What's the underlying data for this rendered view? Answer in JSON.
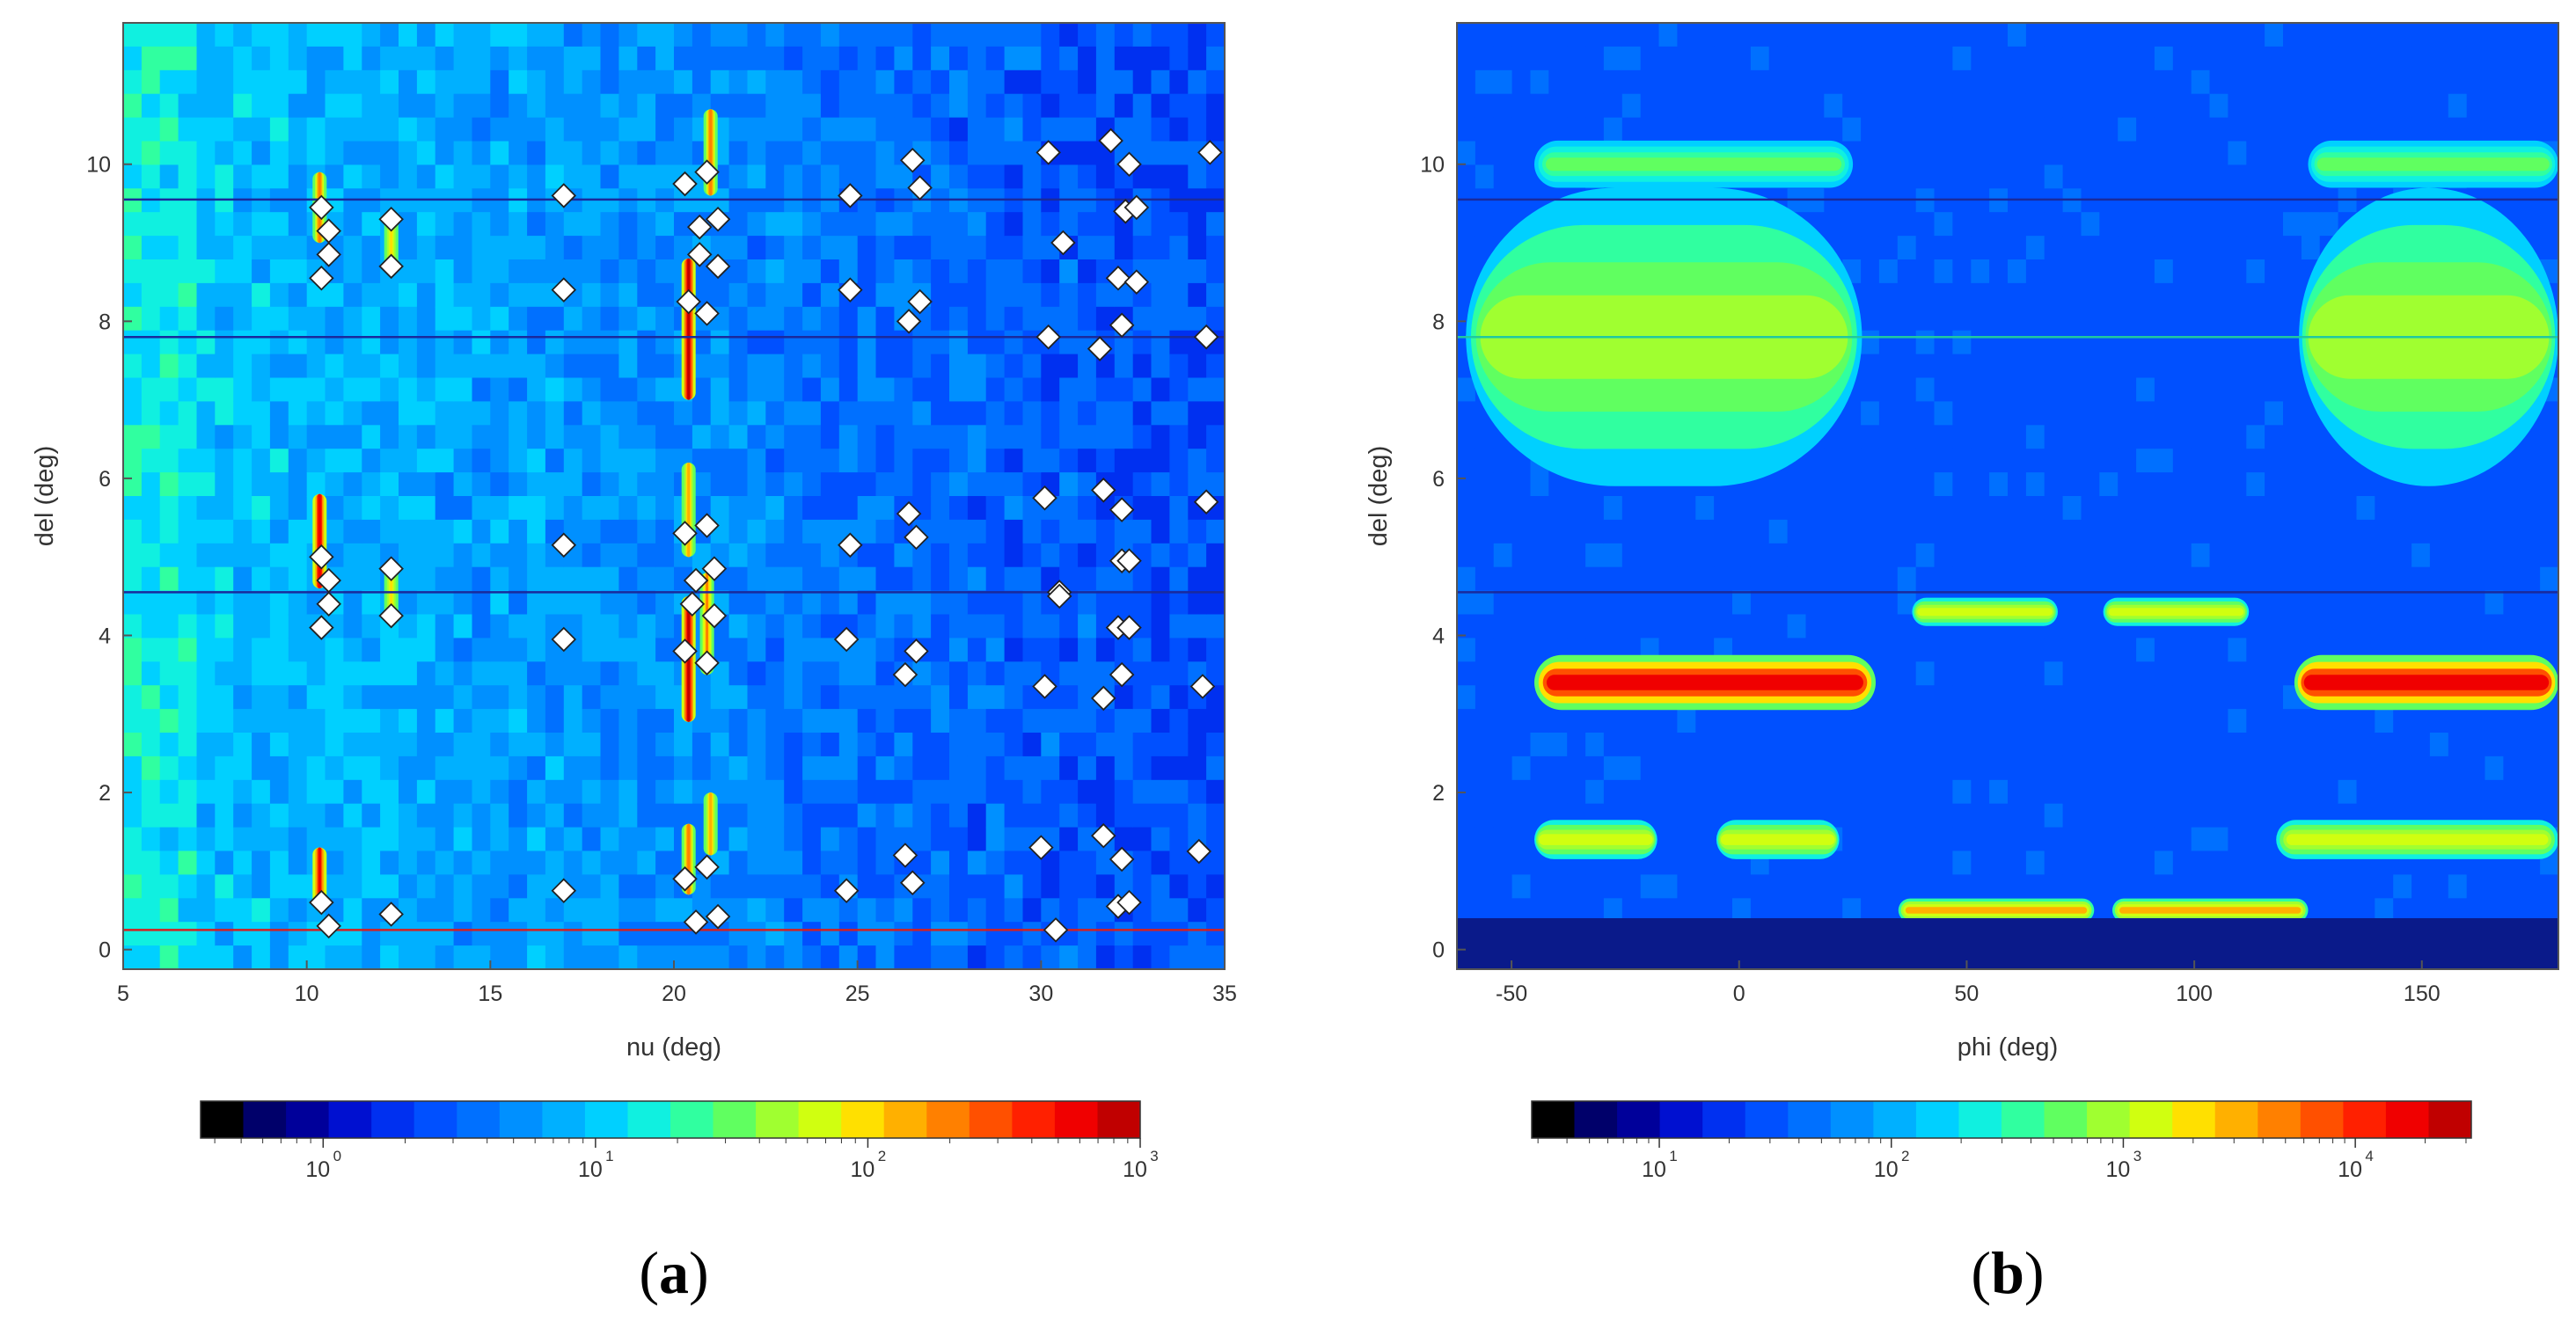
{
  "figure": {
    "panels": [
      {
        "label_open": "(",
        "label_letter": "a",
        "label_close": ")"
      },
      {
        "label_open": "(",
        "label_letter": "b",
        "label_close": ")"
      }
    ]
  },
  "colormap": [
    "#000000",
    "#00006a",
    "#00009a",
    "#0010d0",
    "#0030f0",
    "#0050ff",
    "#0070ff",
    "#0090ff",
    "#00b0ff",
    "#00d0ff",
    "#10f0e0",
    "#30ffa0",
    "#60ff60",
    "#a0ff30",
    "#d0ff10",
    "#ffe000",
    "#ffb000",
    "#ff8000",
    "#ff5000",
    "#ff2000",
    "#f00000",
    "#c00000"
  ],
  "chart_data": [
    {
      "type": "heatmap",
      "title": "",
      "xlabel": "nu (deg)",
      "ylabel": "del (deg)",
      "xlim": [
        5,
        35
      ],
      "ylim": [
        -0.25,
        11.8
      ],
      "xticks": [
        5,
        10,
        15,
        20,
        25,
        30,
        35
      ],
      "yticks": [
        0,
        2,
        4,
        6,
        8,
        10
      ],
      "horizontal_lines": [
        {
          "y": 9.55,
          "color": "#1a2a9c"
        },
        {
          "y": 7.8,
          "color": "#1a2a9c"
        },
        {
          "y": 4.55,
          "color": "#1a2a9c"
        },
        {
          "y": 0.25,
          "color": "#d42020"
        }
      ],
      "intensity_streaks": [
        {
          "x": 10.35,
          "y_from": 9.0,
          "y_to": 9.9,
          "level": 0.7
        },
        {
          "x": 10.35,
          "y_from": 4.6,
          "y_to": 5.8,
          "level": 0.95
        },
        {
          "x": 10.35,
          "y_from": 0.5,
          "y_to": 1.3,
          "level": 0.9
        },
        {
          "x": 12.3,
          "y_from": 8.6,
          "y_to": 9.4,
          "level": 0.55
        },
        {
          "x": 12.3,
          "y_from": 4.2,
          "y_to": 4.9,
          "level": 0.55
        },
        {
          "x": 20.4,
          "y_from": 7.0,
          "y_to": 8.8,
          "level": 1.0
        },
        {
          "x": 20.4,
          "y_from": 2.9,
          "y_to": 4.5,
          "level": 1.0
        },
        {
          "x": 20.4,
          "y_from": 5.0,
          "y_to": 6.2,
          "level": 0.6
        },
        {
          "x": 20.4,
          "y_from": 0.7,
          "y_to": 1.6,
          "level": 0.7
        },
        {
          "x": 21.0,
          "y_from": 9.6,
          "y_to": 10.7,
          "level": 0.7
        },
        {
          "x": 20.9,
          "y_from": 3.5,
          "y_to": 4.8,
          "level": 0.65
        },
        {
          "x": 21.0,
          "y_from": 1.2,
          "y_to": 2.0,
          "level": 0.6
        }
      ],
      "markers": [
        [
          10.4,
          9.45
        ],
        [
          10.6,
          9.15
        ],
        [
          10.6,
          8.85
        ],
        [
          10.4,
          8.55
        ],
        [
          10.4,
          5.0
        ],
        [
          10.6,
          4.7
        ],
        [
          10.6,
          4.4
        ],
        [
          10.4,
          4.1
        ],
        [
          10.4,
          0.6
        ],
        [
          10.6,
          0.3
        ],
        [
          12.3,
          9.3
        ],
        [
          12.3,
          8.7
        ],
        [
          12.3,
          4.85
        ],
        [
          12.3,
          4.25
        ],
        [
          12.3,
          0.45
        ],
        [
          17.0,
          9.6
        ],
        [
          17.0,
          8.4
        ],
        [
          17.0,
          5.15
        ],
        [
          17.0,
          3.95
        ],
        [
          17.0,
          0.75
        ],
        [
          20.3,
          9.75
        ],
        [
          20.4,
          8.25
        ],
        [
          20.3,
          5.3
        ],
        [
          20.3,
          3.8
        ],
        [
          20.3,
          0.9
        ],
        [
          20.6,
          4.7
        ],
        [
          20.5,
          4.4
        ],
        [
          20.6,
          0.35
        ],
        [
          20.7,
          9.2
        ],
        [
          20.7,
          8.85
        ],
        [
          20.9,
          9.9
        ],
        [
          20.9,
          8.1
        ],
        [
          20.9,
          5.4
        ],
        [
          20.9,
          3.65
        ],
        [
          20.9,
          1.05
        ],
        [
          21.2,
          9.3
        ],
        [
          21.2,
          8.7
        ],
        [
          21.1,
          4.85
        ],
        [
          21.1,
          4.25
        ],
        [
          21.2,
          0.42
        ],
        [
          24.8,
          9.6
        ],
        [
          24.8,
          8.4
        ],
        [
          24.8,
          5.15
        ],
        [
          24.7,
          3.95
        ],
        [
          24.7,
          0.75
        ],
        [
          26.5,
          10.05
        ],
        [
          26.7,
          9.7
        ],
        [
          26.7,
          8.25
        ],
        [
          26.4,
          8.0
        ],
        [
          26.4,
          5.55
        ],
        [
          26.6,
          5.25
        ],
        [
          26.6,
          3.8
        ],
        [
          26.3,
          3.5
        ],
        [
          26.3,
          1.2
        ],
        [
          26.5,
          0.85
        ],
        [
          30.2,
          10.15
        ],
        [
          30.6,
          9.0
        ],
        [
          30.2,
          7.8
        ],
        [
          30.1,
          5.75
        ],
        [
          30.5,
          4.55
        ],
        [
          30.5,
          4.5
        ],
        [
          30.1,
          3.35
        ],
        [
          30.0,
          1.3
        ],
        [
          30.4,
          0.25
        ],
        [
          31.9,
          10.3
        ],
        [
          31.6,
          7.65
        ],
        [
          31.7,
          5.85
        ],
        [
          31.7,
          3.2
        ],
        [
          31.7,
          1.45
        ],
        [
          32.1,
          8.55
        ],
        [
          32.2,
          7.95
        ],
        [
          32.2,
          5.6
        ],
        [
          32.2,
          4.95
        ],
        [
          32.1,
          4.1
        ],
        [
          32.2,
          3.5
        ],
        [
          32.2,
          1.15
        ],
        [
          32.1,
          0.55
        ],
        [
          32.4,
          10.0
        ],
        [
          32.3,
          9.4
        ],
        [
          32.4,
          4.95
        ],
        [
          32.4,
          4.1
        ],
        [
          32.4,
          0.6
        ],
        [
          32.6,
          9.45
        ],
        [
          32.6,
          8.5
        ],
        [
          34.6,
          10.15
        ],
        [
          34.5,
          7.8
        ],
        [
          34.5,
          5.7
        ],
        [
          34.4,
          3.35
        ],
        [
          34.3,
          1.25
        ]
      ],
      "colorbar": {
        "scale": "log",
        "min_decade": -0.45,
        "max_decade": 3,
        "label_decades": [
          0,
          1,
          2,
          3
        ],
        "tick_labels": [
          {
            "base": "10",
            "exp": "0"
          },
          {
            "base": "10",
            "exp": "1"
          },
          {
            "base": "10",
            "exp": "2"
          },
          {
            "base": "10",
            "exp": "3"
          }
        ]
      }
    },
    {
      "type": "heatmap",
      "title": "",
      "xlabel": "phi (deg)",
      "ylabel": "del (deg)",
      "xlim": [
        -62,
        180
      ],
      "ylim": [
        -0.25,
        11.8
      ],
      "xticks": [
        -50,
        0,
        50,
        100,
        150
      ],
      "yticks": [
        0,
        2,
        4,
        6,
        8,
        10
      ],
      "horizontal_lines": [
        {
          "y": 9.55,
          "color": "#1a2a9c"
        },
        {
          "y": 7.8,
          "color": "#20c8a0"
        },
        {
          "y": 4.55,
          "color": "#1a2a9c"
        }
      ],
      "intensity_bands": [
        {
          "y": 7.8,
          "y_half": 0.45,
          "x_from": -60,
          "x_to": 25,
          "level": 1.0
        },
        {
          "y": 7.8,
          "y_half": 0.45,
          "x_from": 125,
          "x_to": 180,
          "level": 1.0
        },
        {
          "y": 7.8,
          "y_half": 1.9,
          "x_from": -60,
          "x_to": 27,
          "level": 0.45
        },
        {
          "y": 7.8,
          "y_half": 1.9,
          "x_from": 123,
          "x_to": 180,
          "level": 0.45
        },
        {
          "y": 3.4,
          "y_half": 0.35,
          "x_from": -45,
          "x_to": 30,
          "level": 0.9
        },
        {
          "y": 3.4,
          "y_half": 0.35,
          "x_from": 122,
          "x_to": 180,
          "level": 0.9
        },
        {
          "y": 4.3,
          "y_half": 0.18,
          "x_from": 38,
          "x_to": 70,
          "level": 0.55
        },
        {
          "y": 4.3,
          "y_half": 0.18,
          "x_from": 80,
          "x_to": 112,
          "level": 0.55
        },
        {
          "y": 1.4,
          "y_half": 0.25,
          "x_from": -45,
          "x_to": -18,
          "level": 0.55
        },
        {
          "y": 1.4,
          "y_half": 0.25,
          "x_from": -5,
          "x_to": 22,
          "level": 0.55
        },
        {
          "y": 1.4,
          "y_half": 0.25,
          "x_from": 118,
          "x_to": 180,
          "level": 0.55
        },
        {
          "y": 0.5,
          "y_half": 0.15,
          "x_from": 35,
          "x_to": 78,
          "level": 0.65
        },
        {
          "y": 0.5,
          "y_half": 0.15,
          "x_from": 82,
          "x_to": 125,
          "level": 0.65
        },
        {
          "y": 10.0,
          "y_half": 0.3,
          "x_from": -45,
          "x_to": 25,
          "level": 0.4
        },
        {
          "y": 10.0,
          "y_half": 0.3,
          "x_from": 125,
          "x_to": 180,
          "level": 0.4
        }
      ],
      "colorbar": {
        "scale": "log",
        "min_decade": 0.45,
        "max_decade": 4.5,
        "label_decades": [
          1,
          2,
          3,
          4
        ],
        "tick_labels": [
          {
            "base": "10",
            "exp": "1"
          },
          {
            "base": "10",
            "exp": "2"
          },
          {
            "base": "10",
            "exp": "3"
          },
          {
            "base": "10",
            "exp": "4"
          }
        ]
      }
    }
  ]
}
